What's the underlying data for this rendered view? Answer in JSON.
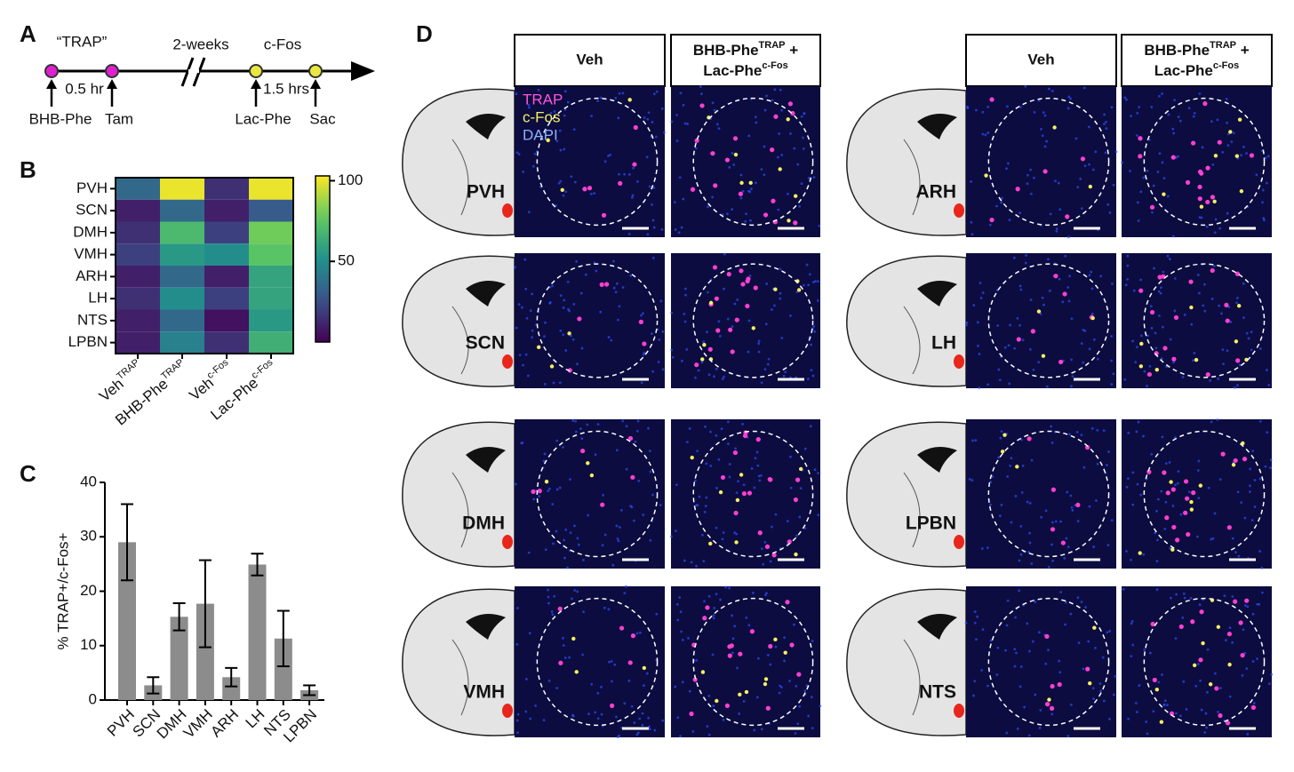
{
  "panel_labels": [
    "A",
    "B",
    "C",
    "D"
  ],
  "timeline": {
    "phase_labels": [
      "“TRAP”",
      "2-weeks",
      "c-Fos"
    ],
    "intervals": [
      "0.5 hr",
      "1.5 hrs"
    ],
    "events": [
      "BHB-Phe",
      "Tam",
      "Lac-Phe",
      "Sac"
    ]
  },
  "chart_data": [
    {
      "type": "heatmap",
      "rows": [
        "PVH",
        "SCN",
        "DMH",
        "VMH",
        "ARH",
        "LH",
        "NTS",
        "LPBN"
      ],
      "columns": [
        {
          "name": "Veh",
          "sup": "TRAP"
        },
        {
          "name": "BHB-Phe",
          "sup": "TRAP"
        },
        {
          "name": "Veh",
          "sup": "c-Fos"
        },
        {
          "name": "Lac-Phe",
          "sup": "c-Fos"
        }
      ],
      "values": [
        [
          35,
          100,
          15,
          100
        ],
        [
          10,
          35,
          10,
          30
        ],
        [
          15,
          70,
          20,
          80
        ],
        [
          20,
          55,
          50,
          75
        ],
        [
          10,
          35,
          10,
          60
        ],
        [
          15,
          50,
          20,
          60
        ],
        [
          10,
          35,
          5,
          55
        ],
        [
          10,
          45,
          15,
          65
        ]
      ],
      "zlim": [
        0,
        103
      ],
      "zticks": [
        50,
        100
      ]
    },
    {
      "type": "bar",
      "ylabel": "% TRAP+/c-Fos+",
      "categories": [
        "PVH",
        "SCN",
        "DMH",
        "VMH",
        "ARH",
        "LH",
        "NTS",
        "LPBN"
      ],
      "values": [
        29,
        2.7,
        15.3,
        17.7,
        4.2,
        24.9,
        11.3,
        1.8
      ],
      "errors": [
        7,
        1.5,
        2.5,
        8,
        1.7,
        2,
        5.1,
        0.9
      ],
      "color": "#8c8c8c",
      "ylim": [
        0,
        40
      ],
      "yticks": [
        0,
        10,
        20,
        30,
        40
      ]
    }
  ],
  "panel_d": {
    "veh_header": "Veh",
    "treat_header": {
      "line1": "BHB-Phe",
      "sup1": "TRAP",
      "tail1": " +",
      "line2": "Lac-Phe",
      "sup2": "c-Fos"
    },
    "channels": [
      "TRAP",
      "c-Fos",
      "DAPI"
    ],
    "regions_left": [
      "PVH",
      "SCN",
      "DMH",
      "VMH"
    ],
    "regions_right": [
      "ARH",
      "LH",
      "LPBN",
      "NTS"
    ]
  }
}
